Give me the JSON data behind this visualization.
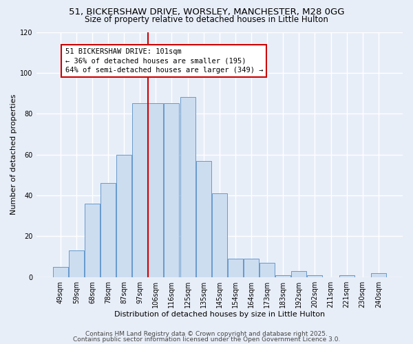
{
  "title1": "51, BICKERSHAW DRIVE, WORSLEY, MANCHESTER, M28 0GG",
  "title2": "Size of property relative to detached houses in Little Hulton",
  "xlabel": "Distribution of detached houses by size in Little Hulton",
  "ylabel": "Number of detached properties",
  "bar_labels": [
    "49sqm",
    "59sqm",
    "68sqm",
    "78sqm",
    "87sqm",
    "97sqm",
    "106sqm",
    "116sqm",
    "125sqm",
    "135sqm",
    "145sqm",
    "154sqm",
    "164sqm",
    "173sqm",
    "183sqm",
    "192sqm",
    "202sqm",
    "211sqm",
    "221sqm",
    "230sqm",
    "240sqm"
  ],
  "bar_values": [
    5,
    13,
    36,
    46,
    60,
    85,
    85,
    85,
    88,
    57,
    41,
    9,
    9,
    7,
    1,
    3,
    1,
    0,
    1,
    0,
    2
  ],
  "bar_color": "#ccddf0",
  "bar_edge_color": "#6699cc",
  "vline_x_index": 6,
  "vline_color": "#cc0000",
  "annotation_text": "51 BICKERSHAW DRIVE: 101sqm\n← 36% of detached houses are smaller (195)\n64% of semi-detached houses are larger (349) →",
  "annotation_box_facecolor": "#ffffff",
  "annotation_box_edgecolor": "#cc0000",
  "ylim": [
    0,
    120
  ],
  "yticks": [
    0,
    20,
    40,
    60,
    80,
    100,
    120
  ],
  "footer1": "Contains HM Land Registry data © Crown copyright and database right 2025.",
  "footer2": "Contains public sector information licensed under the Open Government Licence 3.0.",
  "background_color": "#e8eef8",
  "plot_background": "#e8eef8",
  "grid_color": "#ffffff",
  "title_fontsize": 9.5,
  "subtitle_fontsize": 8.5,
  "axis_label_fontsize": 8,
  "tick_fontsize": 7,
  "annotation_fontsize": 7.5,
  "footer_fontsize": 6.5
}
